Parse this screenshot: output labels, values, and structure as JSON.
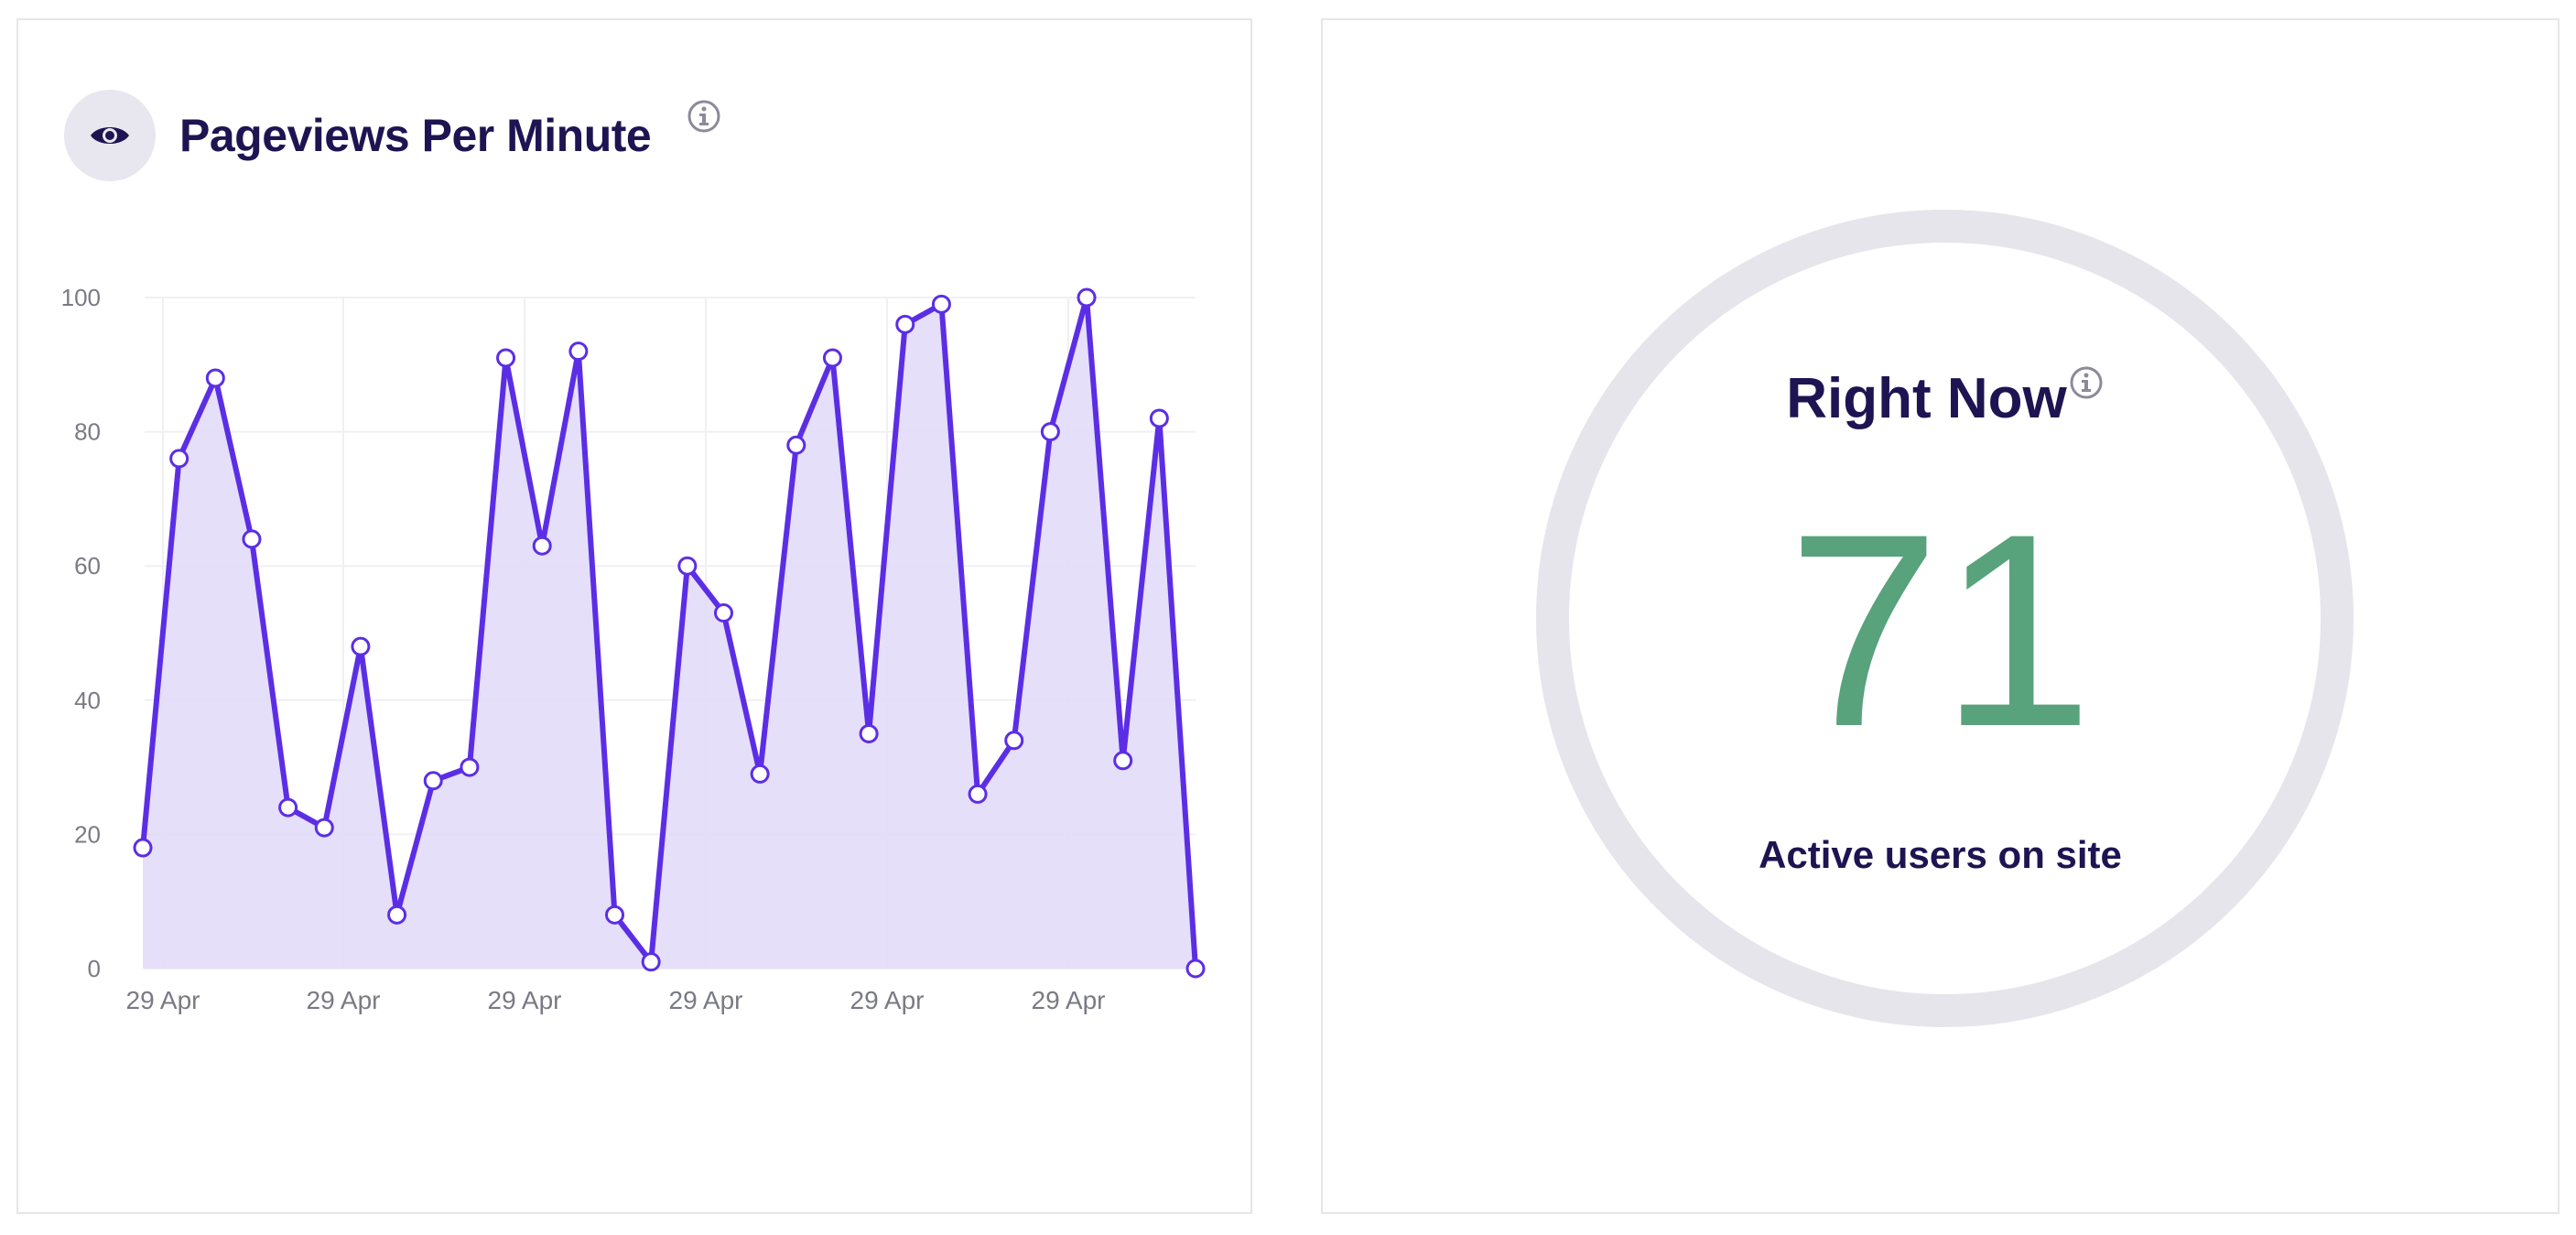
{
  "pageviews_card": {
    "title": "Pageviews Per Minute",
    "icon": "eye-icon",
    "info_icon": "info-icon"
  },
  "right_now_card": {
    "title": "Right Now",
    "value": "71",
    "subtitle": "Active users on site",
    "info_icon": "info-icon"
  },
  "colors": {
    "line": "#5b2ee6",
    "area": "#e2dbfa",
    "title": "#1e1452",
    "value": "#58a27c",
    "ring": "#e6e5ec"
  },
  "chart_data": {
    "type": "area",
    "title": "Pageviews Per Minute",
    "xlabel": "",
    "ylabel": "",
    "ylim": [
      0,
      100
    ],
    "y_ticks": [
      0,
      20,
      40,
      60,
      80,
      100
    ],
    "x_ticks": [
      "29 Apr",
      "29 Apr",
      "29 Apr",
      "29 Apr",
      "29 Apr",
      "29 Apr"
    ],
    "grid": true,
    "legend": "none",
    "series": [
      {
        "values": [
          18,
          76,
          88,
          64,
          24,
          21,
          48,
          8,
          28,
          30,
          91,
          63,
          92,
          8,
          1,
          60,
          53,
          29,
          78,
          91,
          35,
          96,
          99,
          26,
          34,
          80,
          100,
          31,
          82,
          0
        ]
      }
    ]
  }
}
